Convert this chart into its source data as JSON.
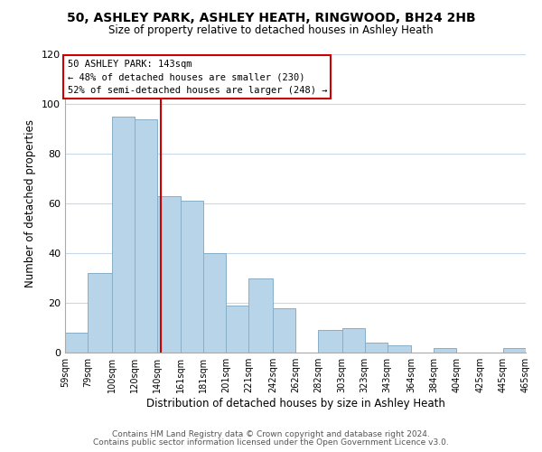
{
  "title": "50, ASHLEY PARK, ASHLEY HEATH, RINGWOOD, BH24 2HB",
  "subtitle": "Size of property relative to detached houses in Ashley Heath",
  "xlabel": "Distribution of detached houses by size in Ashley Heath",
  "ylabel": "Number of detached properties",
  "bar_color": "#b8d4e8",
  "bar_edge_color": "#88aec8",
  "background_color": "#ffffff",
  "grid_color": "#c8d8e8",
  "annotation_box_color": "#ffffff",
  "annotation_border_color": "#cc0000",
  "vline_color": "#cc0000",
  "bin_edges": [
    59,
    79,
    100,
    120,
    140,
    161,
    181,
    201,
    221,
    242,
    262,
    282,
    303,
    323,
    343,
    364,
    384,
    404,
    425,
    445,
    465
  ],
  "bin_labels": [
    "59sqm",
    "79sqm",
    "100sqm",
    "120sqm",
    "140sqm",
    "161sqm",
    "181sqm",
    "201sqm",
    "221sqm",
    "242sqm",
    "262sqm",
    "282sqm",
    "303sqm",
    "323sqm",
    "343sqm",
    "364sqm",
    "384sqm",
    "404sqm",
    "425sqm",
    "445sqm",
    "465sqm"
  ],
  "counts": [
    8,
    32,
    95,
    94,
    63,
    61,
    40,
    19,
    30,
    18,
    0,
    9,
    10,
    4,
    3,
    0,
    2,
    0,
    0,
    2
  ],
  "vline_x": 143,
  "annotation_title": "50 ASHLEY PARK: 143sqm",
  "annotation_line1": "← 48% of detached houses are smaller (230)",
  "annotation_line2": "52% of semi-detached houses are larger (248) →",
  "footer1": "Contains HM Land Registry data © Crown copyright and database right 2024.",
  "footer2": "Contains public sector information licensed under the Open Government Licence v3.0.",
  "ylim": [
    0,
    120
  ],
  "yticks": [
    0,
    20,
    40,
    60,
    80,
    100,
    120
  ]
}
